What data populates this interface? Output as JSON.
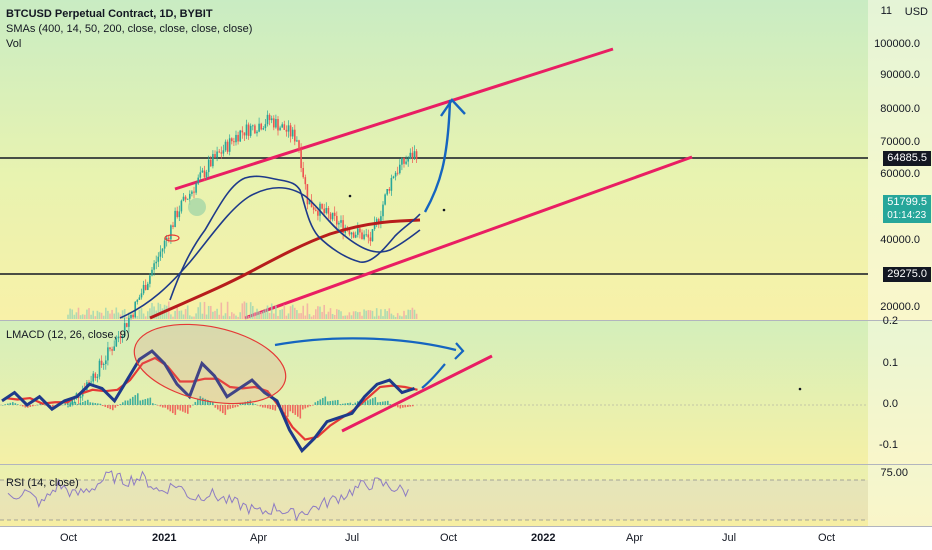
{
  "header": {
    "symbol_title": "BTCUSD Perpetual Contract, 1D, BYBIT",
    "sma_legend": "SMAs (400, 14, 50, 200, close, close, close, close)",
    "vol_legend": "Vol",
    "macd_legend": "LMACD (12, 26, close, 9)",
    "rsi_legend": "RSI (14, close)",
    "currency": "USD"
  },
  "price_axis": {
    "scale": "log",
    "ticks": [
      "100000.0",
      "90000.0",
      "80000.0",
      "70000.0",
      "60000.0",
      "40000.0",
      "20000.0"
    ],
    "top_label": "11"
  },
  "price_tags": {
    "resistance": "64885.5",
    "last_price": "51799.5",
    "countdown": "01:14:23",
    "support": "29275.0"
  },
  "macd_axis": {
    "ticks": [
      "0.2",
      "0.1",
      "0.0",
      "-0.1"
    ]
  },
  "rsi_axis": {
    "ticks": [
      "75.00"
    ]
  },
  "time_axis": {
    "ticks": [
      "Oct",
      "2021",
      "Apr",
      "Jul",
      "Oct",
      "2022",
      "Apr",
      "Jul",
      "Oct"
    ]
  },
  "colors": {
    "trend_channel": "#e91e63",
    "candle_up": "#26a69a",
    "candle_down": "#ef5350",
    "sma_fast": "#1e3a8a",
    "sma_slow": "#b71c1c",
    "macd_line": "#1e3a8a",
    "signal_line": "#e53935",
    "rsi_line": "#8e7cc3",
    "arrow": "#1565c0"
  },
  "chart_data": [
    {
      "type": "candlestick",
      "pane": "price",
      "y_scale": "log",
      "ylim": [
        17000,
        110000
      ],
      "x_range": [
        "2020-09",
        "2022-11"
      ],
      "close_path": [
        {
          "x": "2020-10-01",
          "y": 10800
        },
        {
          "x": "2020-11-01",
          "y": 13800
        },
        {
          "x": "2020-12-01",
          "y": 19000
        },
        {
          "x": "2021-01-01",
          "y": 29000
        },
        {
          "x": "2021-01-15",
          "y": 36000
        },
        {
          "x": "2021-02-15",
          "y": 48000
        },
        {
          "x": "2021-03-15",
          "y": 58000
        },
        {
          "x": "2021-04-14",
          "y": 63000
        },
        {
          "x": "2021-05-10",
          "y": 56000
        },
        {
          "x": "2021-05-20",
          "y": 38000
        },
        {
          "x": "2021-06-20",
          "y": 33000
        },
        {
          "x": "2021-07-20",
          "y": 30000
        },
        {
          "x": "2021-08-10",
          "y": 45000
        },
        {
          "x": "2021-08-23",
          "y": 49000
        },
        {
          "x": "2021-09-03",
          "y": 51800
        }
      ],
      "horizontal_levels": [
        64885.5,
        29275.0
      ],
      "channel_upper": [
        {
          "x": "2021-01-20",
          "y": 54000
        },
        {
          "x": "2022-03-25",
          "y": 100000
        }
      ],
      "channel_lower": [
        {
          "x": "2021-05-15",
          "y": 17500
        },
        {
          "x": "2022-06-30",
          "y": 64000
        }
      ],
      "projection_arrow_target": {
        "x": "2021-10-12",
        "y": 83000
      }
    },
    {
      "type": "line",
      "pane": "macd",
      "ylim": [
        -0.15,
        0.2
      ],
      "series": [
        {
          "name": "",
          "values": [
            0.01,
            0.03,
            0.0,
            0.02,
            -0.01,
            0.01,
            0.02,
            0.05,
            0.04,
            0.01,
            0.06,
            0.11,
            0.13,
            0.1,
            0.05,
            0.02,
            0.1,
            0.07,
            0.02,
            0.04,
            0.06,
            0.03,
            0.01,
            -0.06,
            -0.11,
            -0.08,
            -0.04,
            -0.03,
            -0.02,
            0.02,
            0.05,
            0.06,
            0.03,
            0.04
          ]
        }
      ]
    },
    {
      "type": "line",
      "pane": "rsi",
      "ylim": [
        25,
        85
      ],
      "series": [
        {
          "name": "",
          "values": [
            55,
            62,
            48,
            70,
            58,
            66,
            80,
            74,
            78,
            62,
            70,
            55,
            60,
            52,
            46,
            38,
            44,
            36,
            42,
            50,
            58,
            68,
            72,
            66,
            60
          ]
        }
      ]
    }
  ]
}
